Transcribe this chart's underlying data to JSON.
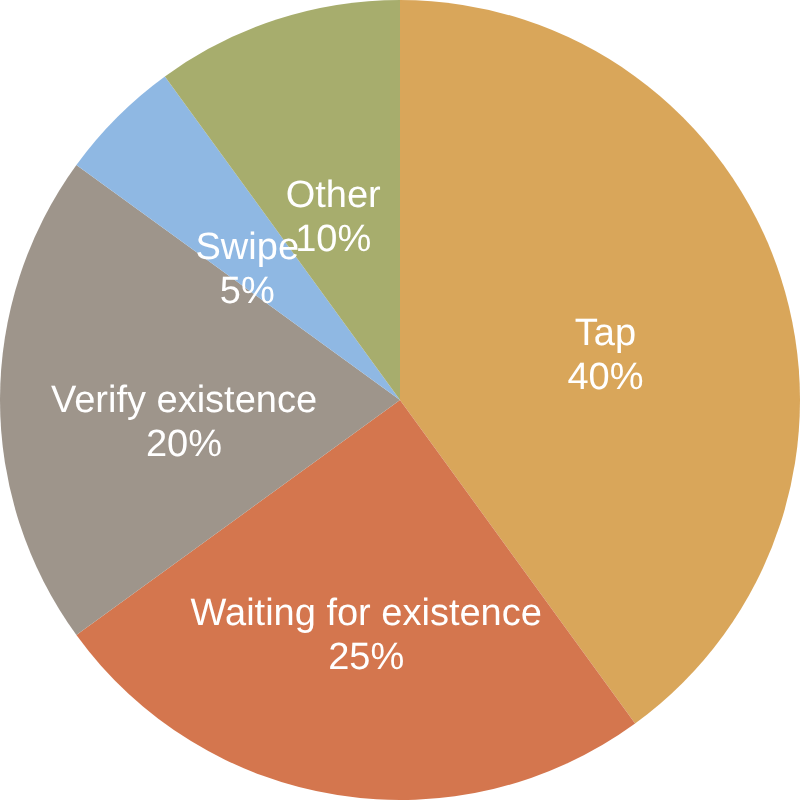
{
  "chart_data": {
    "type": "pie",
    "categories": [
      "Tap",
      "Waiting for existence",
      "Verify existence",
      "Swipe",
      "Other"
    ],
    "values": [
      40,
      25,
      20,
      5,
      10
    ],
    "value_labels": [
      "40%",
      "25%",
      "20%",
      "5%",
      "10%"
    ],
    "colors": [
      "#d9a65a",
      "#d4764e",
      "#9e958b",
      "#8fb8e3",
      "#a7ad6d"
    ]
  }
}
